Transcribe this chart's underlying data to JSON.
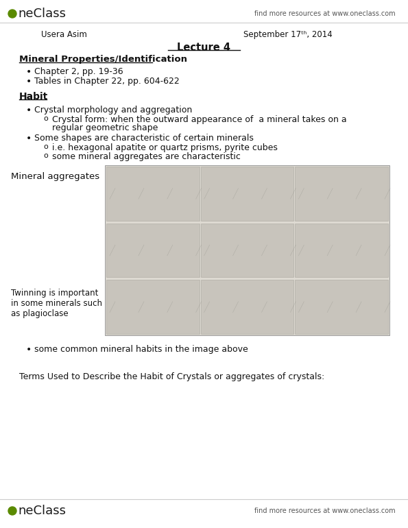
{
  "bg_color": "#f0ede6",
  "page_bg": "#ffffff",
  "header_right": "find more resources at www.oneclass.com",
  "author": "Usera Asim",
  "date": "September 17ᵗʰ, 2014",
  "lecture_title": "Lecture 4",
  "section1_title": "Mineral Properties/Identification ",
  "section1_bullets": [
    "Chapter 2, pp. 19-36",
    "Tables in Chapter 22, pp. 604-622"
  ],
  "section2_title": "Habit",
  "section2_bullet1": "Crystal morphology and aggregation",
  "section2_sub1": "Crystal form: when the outward appearance of  a mineral takes on a",
  "section2_sub1b": "regular geometric shape",
  "section2_bullet2": "Some shapes are characteristic of certain minerals",
  "section2_sub2a": "i.e. hexagonal apatite or quartz prisms, pyrite cubes",
  "section2_sub2b": "some mineral aggregates are characteristic",
  "image_label_left": "Mineral aggregates",
  "image_label_bottom_left": "Twinning is important\nin some minerals such\nas plagioclase",
  "bullet_after_image": "some common mineral habits in the image above",
  "footer_text": "Terms Used to Describe the Habit of Crystals or aggregates of crystals:",
  "footer_right": "find more resources at www.oneclass.com",
  "logo_color": "#5a8a00",
  "text_color": "#111111",
  "light_gray": "#cccccc",
  "img_bg": "#dedad2",
  "img_cell_bg": "#c8c4bc"
}
